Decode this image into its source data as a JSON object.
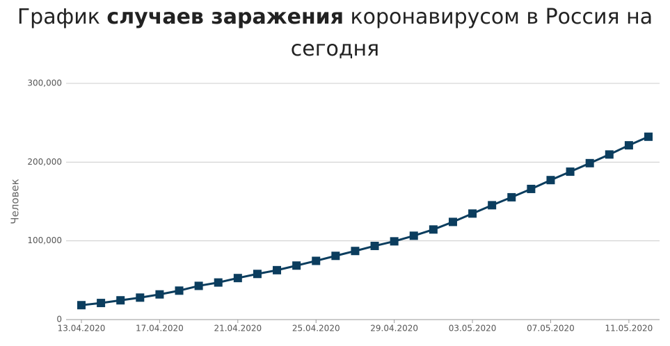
{
  "chart_data": {
    "type": "line",
    "title": {
      "before": "График",
      "bold": "случаев заражения",
      "after": "коронавирусом в Россия на сегодня"
    },
    "y_label": "Человек",
    "categories": [
      "13.04.2020",
      null,
      null,
      null,
      "17.04.2020",
      null,
      null,
      null,
      "21.04.2020",
      null,
      null,
      null,
      "25.04.2020",
      null,
      null,
      null,
      "29.04.2020",
      null,
      null,
      null,
      "03.05.2020",
      null,
      null,
      null,
      "07.05.2020",
      null,
      null,
      null,
      "11.05.2020",
      null
    ],
    "series": [
      {
        "color": "#0b3d5e",
        "values": [
          18328,
          21102,
          24490,
          27938,
          32008,
          36793,
          42853,
          47121,
          52763,
          57999,
          62773,
          68622,
          74588,
          80949,
          87147,
          93558,
          99399,
          106498,
          114431,
          124054,
          134687,
          145268,
          155370,
          165929,
          177160,
          187859,
          198676,
          209688,
          221344,
          232243
        ]
      }
    ],
    "ylim": [
      0,
      300000
    ],
    "yticks": [
      0,
      {
        "value": 100000,
        "label": "100,000"
      },
      {
        "value": 200000,
        "label": "200,000"
      },
      {
        "value": 300000,
        "label": "300,000"
      }
    ],
    "grid": true
  }
}
